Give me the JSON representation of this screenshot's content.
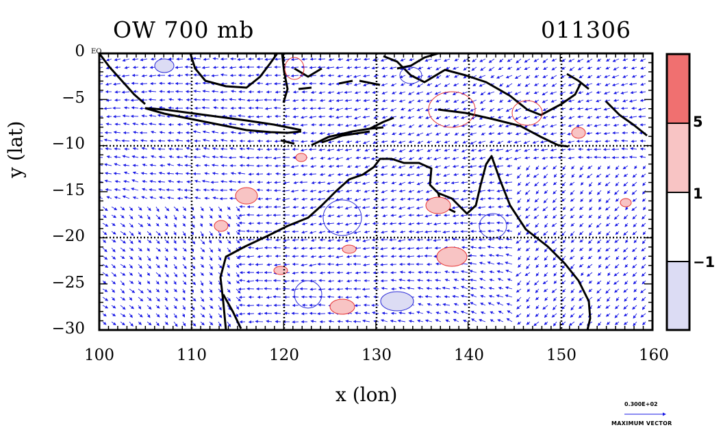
{
  "title_left": "OW 700 mb",
  "title_right": "011306",
  "axes": {
    "xlabel": "x (lon)",
    "ylabel": "y (lat)",
    "xticks": [
      "100",
      "110",
      "120",
      "130",
      "140",
      "150",
      "160"
    ],
    "yticks": [
      "0",
      "−5",
      "−10",
      "−15",
      "−20",
      "−25",
      "−30"
    ],
    "xlim": [
      100,
      160
    ],
    "ylim": [
      -30,
      0
    ],
    "eq_label": "EQ"
  },
  "colorbar": {
    "ticks": [
      "5",
      "1",
      "−1"
    ],
    "levels": [
      -1,
      1,
      5
    ],
    "colors": [
      "#dcdcf4",
      "#ffffff",
      "#f8c4c4",
      "#f07070"
    ]
  },
  "vector_key": {
    "value": "0.300E+02",
    "label": "MAXIMUM VECTOR"
  },
  "colors": {
    "vectors": "#1a1ae6",
    "positive_contour": "#e63030",
    "negative_contour": "#2a2ad8",
    "coast": "#000000"
  }
}
